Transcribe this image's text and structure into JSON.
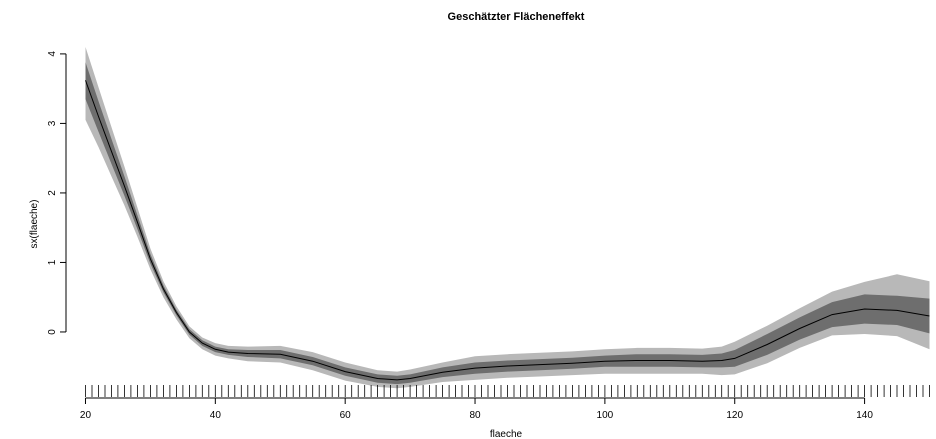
{
  "chart_data": {
    "type": "line",
    "title": "Geschätzter Flächeneffekt",
    "xlabel": "flaeche",
    "ylabel": "sx(flaeche)",
    "xlim": [
      17,
      151
    ],
    "ylim": [
      -0.95,
      4.2
    ],
    "x_ticks": [
      20,
      40,
      60,
      80,
      100,
      120,
      140
    ],
    "y_ticks": [
      0,
      1,
      2,
      3,
      4
    ],
    "grid": false,
    "legend": "none",
    "colors": {
      "line": "#000000",
      "band_outer": "#b8b8b8",
      "band_inner": "#6e6e6e"
    },
    "series": [
      {
        "x": [
          20,
          22,
          24,
          26,
          28,
          30,
          32,
          34,
          36,
          38,
          40,
          42,
          45,
          50,
          55,
          60,
          65,
          68,
          70,
          75,
          80,
          85,
          90,
          95,
          100,
          105,
          110,
          115,
          118,
          120,
          125,
          130,
          135,
          140,
          145,
          150
        ],
        "y": [
          3.62,
          3.1,
          2.6,
          2.1,
          1.58,
          1.05,
          0.62,
          0.28,
          0.0,
          -0.16,
          -0.25,
          -0.29,
          -0.31,
          -0.32,
          -0.42,
          -0.57,
          -0.67,
          -0.69,
          -0.67,
          -0.58,
          -0.52,
          -0.49,
          -0.47,
          -0.45,
          -0.42,
          -0.41,
          -0.41,
          -0.42,
          -0.41,
          -0.38,
          -0.18,
          0.05,
          0.25,
          0.33,
          0.31,
          0.23
        ],
        "inner_lower": [
          3.35,
          2.88,
          2.42,
          1.96,
          1.48,
          0.98,
          0.57,
          0.24,
          -0.04,
          -0.2,
          -0.29,
          -0.33,
          -0.36,
          -0.38,
          -0.48,
          -0.63,
          -0.73,
          -0.75,
          -0.73,
          -0.65,
          -0.6,
          -0.57,
          -0.55,
          -0.53,
          -0.5,
          -0.5,
          -0.5,
          -0.51,
          -0.51,
          -0.5,
          -0.33,
          -0.11,
          0.07,
          0.12,
          0.1,
          -0.02
        ],
        "inner_upper": [
          3.88,
          3.32,
          2.78,
          2.24,
          1.68,
          1.12,
          0.67,
          0.32,
          0.04,
          -0.12,
          -0.21,
          -0.25,
          -0.26,
          -0.26,
          -0.36,
          -0.51,
          -0.61,
          -0.63,
          -0.61,
          -0.51,
          -0.44,
          -0.41,
          -0.39,
          -0.37,
          -0.34,
          -0.32,
          -0.32,
          -0.33,
          -0.31,
          -0.26,
          -0.03,
          0.21,
          0.43,
          0.54,
          0.52,
          0.48
        ],
        "outer_lower": [
          3.05,
          2.66,
          2.24,
          1.82,
          1.37,
          0.9,
          0.5,
          0.18,
          -0.09,
          -0.25,
          -0.34,
          -0.38,
          -0.42,
          -0.44,
          -0.55,
          -0.7,
          -0.79,
          -0.81,
          -0.79,
          -0.72,
          -0.69,
          -0.66,
          -0.64,
          -0.62,
          -0.6,
          -0.6,
          -0.6,
          -0.6,
          -0.62,
          -0.61,
          -0.45,
          -0.23,
          -0.05,
          -0.03,
          -0.06,
          -0.25
        ],
        "outer_upper": [
          4.1,
          3.52,
          2.95,
          2.38,
          1.79,
          1.2,
          0.73,
          0.37,
          0.08,
          -0.08,
          -0.16,
          -0.2,
          -0.21,
          -0.2,
          -0.29,
          -0.44,
          -0.55,
          -0.57,
          -0.54,
          -0.44,
          -0.35,
          -0.32,
          -0.3,
          -0.28,
          -0.25,
          -0.23,
          -0.23,
          -0.24,
          -0.21,
          -0.14,
          0.09,
          0.34,
          0.58,
          0.72,
          0.83,
          0.73
        ]
      }
    ],
    "rug_x": [
      20,
      21,
      22,
      23,
      24,
      25,
      26,
      27,
      28,
      29,
      30,
      31,
      32,
      33,
      34,
      35,
      36,
      37,
      38,
      39,
      40,
      41,
      42,
      43,
      44,
      45,
      46,
      47,
      48,
      49,
      50,
      51,
      52,
      53,
      54,
      55,
      56,
      57,
      58,
      59,
      60,
      61,
      62,
      63,
      64,
      65,
      66,
      67,
      68,
      69,
      70,
      71,
      72,
      73,
      74,
      75,
      76,
      77,
      78,
      79,
      80,
      81,
      82,
      83,
      84,
      85,
      86,
      87,
      88,
      89,
      90,
      91,
      92,
      93,
      94,
      95,
      96,
      97,
      98,
      99,
      100,
      101,
      102,
      103,
      104,
      105,
      106,
      107,
      108,
      109,
      110,
      111,
      112,
      113,
      114,
      115,
      116,
      117,
      118,
      119,
      120,
      121,
      122,
      123,
      124,
      125,
      126,
      127,
      128,
      129,
      130,
      131,
      132,
      133,
      134,
      135,
      136,
      137,
      138,
      139,
      140,
      141,
      142,
      143,
      144,
      145,
      146,
      147,
      148,
      149,
      150
    ]
  }
}
